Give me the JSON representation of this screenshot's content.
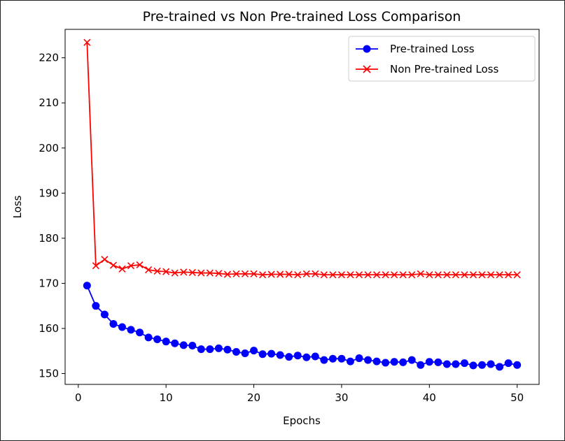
{
  "chart_data": {
    "type": "line",
    "title": "Pre-trained vs Non Pre-trained Loss Comparison",
    "xlabel": "Epochs",
    "ylabel": "Loss",
    "xlim": [
      -1.5,
      52.5
    ],
    "ylim": [
      147.6,
      226.3
    ],
    "xticks": [
      0,
      10,
      20,
      30,
      40,
      50
    ],
    "yticks": [
      150,
      160,
      170,
      180,
      190,
      200,
      210,
      220
    ],
    "legend_position": "top-right",
    "grid": false,
    "x": [
      1,
      2,
      3,
      4,
      5,
      6,
      7,
      8,
      9,
      10,
      11,
      12,
      13,
      14,
      15,
      16,
      17,
      18,
      19,
      20,
      21,
      22,
      23,
      24,
      25,
      26,
      27,
      28,
      29,
      30,
      31,
      32,
      33,
      34,
      35,
      36,
      37,
      38,
      39,
      40,
      41,
      42,
      43,
      44,
      45,
      46,
      47,
      48,
      49,
      50
    ],
    "series": [
      {
        "name": "Pre-trained Loss",
        "color": "#0000ff",
        "marker": "circle",
        "values": [
          169.5,
          165.0,
          163.1,
          161.0,
          160.3,
          159.7,
          159.1,
          158.0,
          157.6,
          157.1,
          156.7,
          156.3,
          156.2,
          155.4,
          155.4,
          155.6,
          155.3,
          154.8,
          154.5,
          155.1,
          154.3,
          154.4,
          154.1,
          153.7,
          154.0,
          153.6,
          153.8,
          153.0,
          153.3,
          153.3,
          152.7,
          153.4,
          153.0,
          152.7,
          152.4,
          152.6,
          152.5,
          153.0,
          151.9,
          152.6,
          152.5,
          152.1,
          152.1,
          152.3,
          151.8,
          151.9,
          152.1,
          151.5,
          152.3,
          151.9
        ]
      },
      {
        "name": "Non Pre-trained Loss",
        "color": "#ff0000",
        "marker": "x",
        "values": [
          223.4,
          173.9,
          175.3,
          174.0,
          173.2,
          173.9,
          174.1,
          173.0,
          172.7,
          172.6,
          172.3,
          172.5,
          172.4,
          172.3,
          172.3,
          172.2,
          172.0,
          172.1,
          172.1,
          172.1,
          171.9,
          172.0,
          172.0,
          172.0,
          171.9,
          172.1,
          172.1,
          171.9,
          171.9,
          171.9,
          171.9,
          171.9,
          171.9,
          171.9,
          171.9,
          171.9,
          171.9,
          171.9,
          172.1,
          171.9,
          171.9,
          171.9,
          171.9,
          171.9,
          171.9,
          171.9,
          171.9,
          171.9,
          171.9,
          171.9
        ]
      }
    ]
  }
}
